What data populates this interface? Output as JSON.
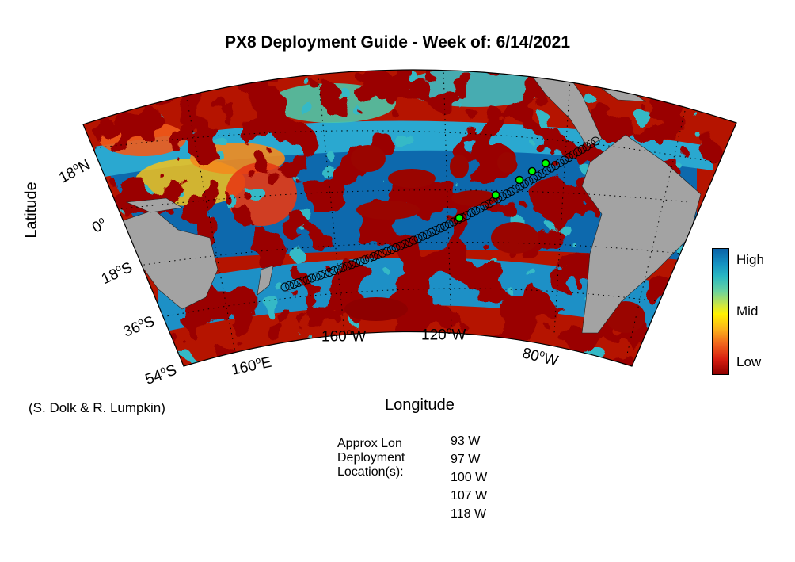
{
  "title": "PX8 Deployment Guide - Week of: 6/14/2021",
  "axes": {
    "xlabel": "Longitude",
    "ylabel": "Latitude"
  },
  "credit": "(S. Dolk & R. Lumpkin)",
  "lat_ticks": [
    {
      "deg": "18",
      "hemi": "N"
    },
    {
      "deg": "0",
      "hemi": ""
    },
    {
      "deg": "18",
      "hemi": "S"
    },
    {
      "deg": "36",
      "hemi": "S"
    },
    {
      "deg": "54",
      "hemi": "S"
    }
  ],
  "lon_ticks": [
    {
      "deg": "160",
      "hemi": "E"
    },
    {
      "deg": "160",
      "hemi": "W"
    },
    {
      "deg": "120",
      "hemi": "W"
    },
    {
      "deg": "80",
      "hemi": "W"
    }
  ],
  "colorbar": {
    "high": "High",
    "mid": "Mid",
    "low": "Low"
  },
  "deployment": {
    "heading": [
      "Approx Lon",
      "Deployment",
      "Location(s):"
    ],
    "locations": [
      "93 W",
      "97 W",
      "100 W",
      "107 W",
      "118 W"
    ]
  },
  "colors": {
    "land": "#a3a3a3",
    "track_marker": "#000000",
    "deploy_marker": "#00ff00"
  }
}
